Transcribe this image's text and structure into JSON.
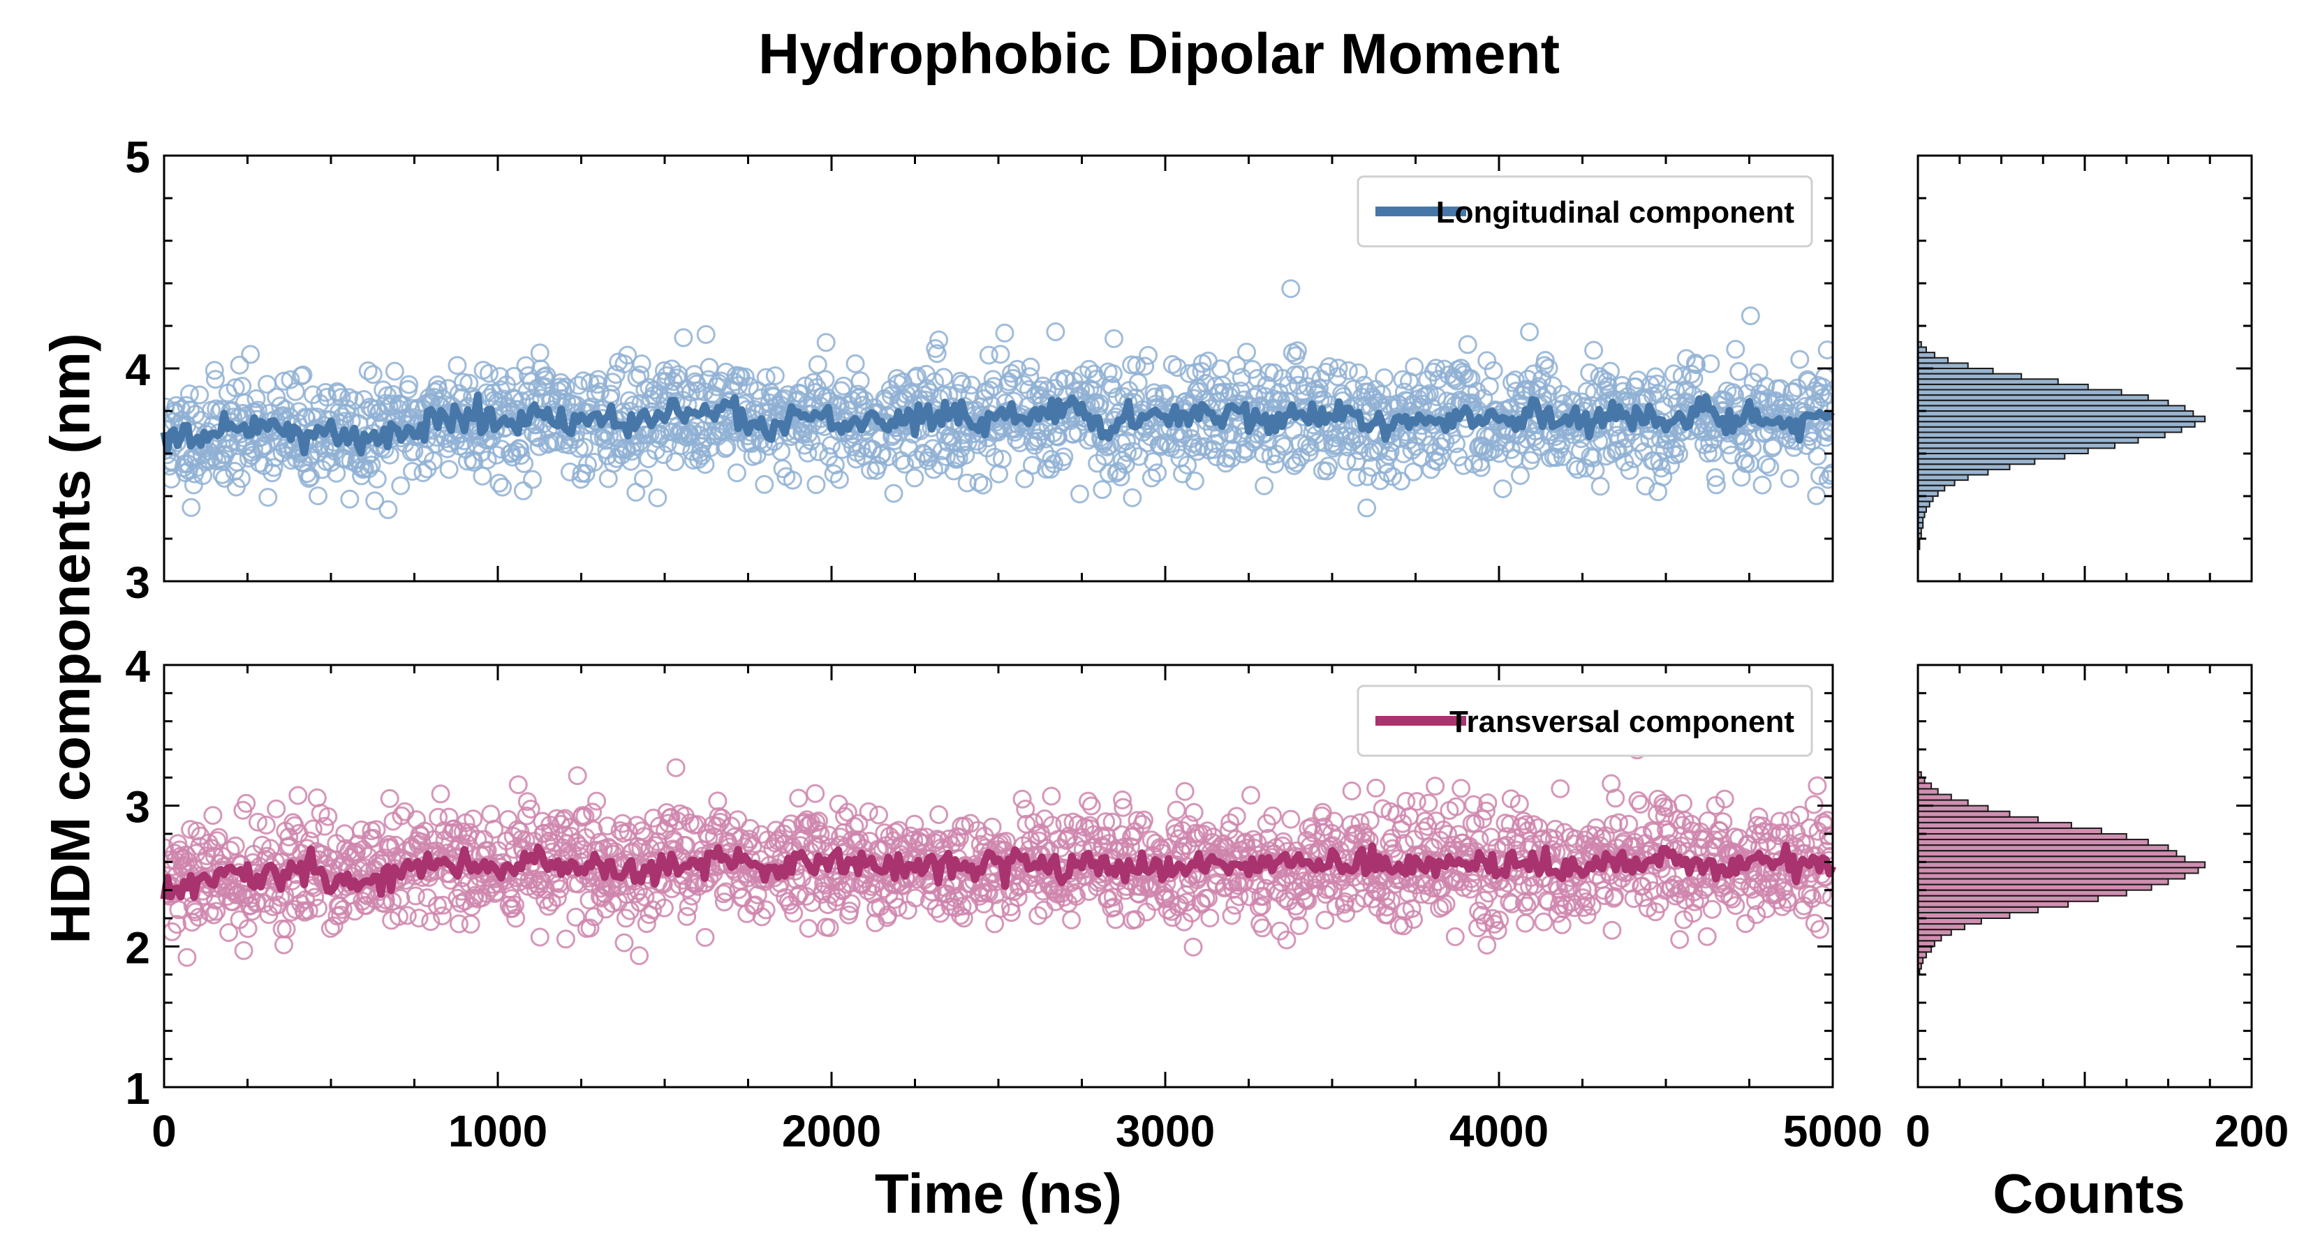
{
  "title": "Hydrophobic Dipolar Moment",
  "colors": {
    "longitudinal": "#4677a8",
    "longitudinal_scatter": "#8fb0d3",
    "transversal": "#a8336f",
    "transversal_scatter": "#cf85ad"
  },
  "chart_data": [
    {
      "type": "scatter",
      "panel": "top-time",
      "legend": "Longitudinal component",
      "legend_position": "top-right",
      "xlim": [
        0,
        5000
      ],
      "ylim": [
        3,
        5
      ],
      "yticks": [
        "3",
        "4",
        "5"
      ],
      "series": [
        {
          "name": "Longitudinal component (raw)",
          "style": "open-circles",
          "mean": 3.75,
          "spread": 0.13,
          "n_points": 2000
        },
        {
          "name": "Longitudinal component (running average)",
          "style": "line",
          "x": [
            0,
            100,
            200,
            300,
            400,
            500,
            600,
            700,
            800,
            900,
            1000,
            1100,
            1200,
            1300,
            1400,
            1500,
            1600,
            1700,
            1800,
            1900,
            2000,
            2100,
            2200,
            2300,
            2400,
            2500,
            2600,
            2700,
            2800,
            2900,
            3000,
            3100,
            3200,
            3300,
            3400,
            3500,
            3600,
            3700,
            3800,
            3900,
            4000,
            4100,
            4200,
            4300,
            4400,
            4500,
            4600,
            4700,
            4800,
            4900,
            5000
          ],
          "y": [
            3.65,
            3.68,
            3.7,
            3.72,
            3.68,
            3.7,
            3.66,
            3.72,
            3.75,
            3.78,
            3.76,
            3.78,
            3.74,
            3.79,
            3.72,
            3.8,
            3.77,
            3.82,
            3.72,
            3.78,
            3.78,
            3.72,
            3.76,
            3.78,
            3.74,
            3.76,
            3.78,
            3.82,
            3.72,
            3.76,
            3.78,
            3.76,
            3.8,
            3.76,
            3.78,
            3.78,
            3.74,
            3.74,
            3.76,
            3.78,
            3.76,
            3.78,
            3.76,
            3.76,
            3.78,
            3.74,
            3.8,
            3.76,
            3.76,
            3.74,
            3.76
          ]
        }
      ]
    },
    {
      "type": "scatter",
      "panel": "bottom-time",
      "legend": "Transversal component",
      "legend_position": "top-right",
      "xlabel": "Time (ns)",
      "xlim": [
        0,
        5000
      ],
      "xticks": [
        "0",
        "1000",
        "2000",
        "3000",
        "4000",
        "5000"
      ],
      "ylim": [
        1,
        4
      ],
      "yticks": [
        "1",
        "2",
        "3",
        "4"
      ],
      "series": [
        {
          "name": "Transversal component (raw)",
          "style": "open-circles",
          "mean": 2.57,
          "spread": 0.2,
          "n_points": 2000
        },
        {
          "name": "Transversal component (running average)",
          "style": "line",
          "x": [
            0,
            100,
            200,
            300,
            400,
            500,
            600,
            700,
            800,
            900,
            1000,
            1100,
            1200,
            1300,
            1400,
            1500,
            1600,
            1700,
            1800,
            1900,
            2000,
            2100,
            2200,
            2300,
            2400,
            2500,
            2600,
            2700,
            2800,
            2900,
            3000,
            3100,
            3200,
            3300,
            3400,
            3500,
            3600,
            3700,
            3800,
            3900,
            4000,
            4100,
            4200,
            4300,
            4400,
            4500,
            4600,
            4700,
            4800,
            4900,
            5000
          ],
          "y": [
            2.42,
            2.45,
            2.52,
            2.45,
            2.58,
            2.5,
            2.45,
            2.55,
            2.58,
            2.6,
            2.52,
            2.62,
            2.55,
            2.6,
            2.52,
            2.58,
            2.6,
            2.62,
            2.55,
            2.6,
            2.58,
            2.62,
            2.55,
            2.58,
            2.55,
            2.58,
            2.62,
            2.55,
            2.58,
            2.55,
            2.58,
            2.6,
            2.55,
            2.58,
            2.6,
            2.58,
            2.6,
            2.55,
            2.58,
            2.6,
            2.55,
            2.58,
            2.55,
            2.6,
            2.58,
            2.62,
            2.55,
            2.58,
            2.6,
            2.55,
            2.58
          ]
        }
      ]
    },
    {
      "type": "bar",
      "panel": "top-hist",
      "orientation": "horizontal",
      "ylim": [
        3,
        5
      ],
      "xlim": [
        0,
        200
      ],
      "bin_width": 0.025,
      "bins_start": [
        3.15,
        3.175,
        3.2,
        3.225,
        3.25,
        3.275,
        3.3,
        3.325,
        3.35,
        3.375,
        3.4,
        3.425,
        3.45,
        3.475,
        3.5,
        3.525,
        3.55,
        3.575,
        3.6,
        3.625,
        3.65,
        3.675,
        3.7,
        3.725,
        3.75,
        3.775,
        3.8,
        3.825,
        3.85,
        3.875,
        3.9,
        3.925,
        3.95,
        3.975,
        4.0,
        4.025,
        4.05,
        4.075,
        4.1
      ],
      "counts": [
        1,
        1,
        2,
        2,
        3,
        3,
        4,
        5,
        7,
        9,
        12,
        16,
        22,
        30,
        42,
        55,
        70,
        88,
        102,
        118,
        132,
        148,
        158,
        166,
        172,
        165,
        160,
        150,
        138,
        122,
        102,
        84,
        62,
        45,
        30,
        18,
        10,
        5,
        2
      ]
    },
    {
      "type": "bar",
      "panel": "bottom-hist",
      "orientation": "horizontal",
      "xlabel": "Counts",
      "ylim": [
        1,
        4
      ],
      "xlim": [
        0,
        200
      ],
      "xticks": [
        "0",
        "200"
      ],
      "bin_width": 0.04,
      "bins_start": [
        1.8,
        1.84,
        1.88,
        1.92,
        1.96,
        2.0,
        2.04,
        2.08,
        2.12,
        2.16,
        2.2,
        2.24,
        2.28,
        2.32,
        2.36,
        2.4,
        2.44,
        2.48,
        2.52,
        2.56,
        2.6,
        2.64,
        2.68,
        2.72,
        2.76,
        2.8,
        2.84,
        2.88,
        2.92,
        2.96,
        3.0,
        3.04,
        3.08,
        3.12,
        3.16,
        3.2
      ],
      "counts": [
        1,
        2,
        3,
        5,
        8,
        10,
        14,
        20,
        28,
        38,
        55,
        72,
        90,
        108,
        125,
        140,
        150,
        160,
        168,
        172,
        160,
        155,
        150,
        138,
        125,
        110,
        92,
        72,
        55,
        42,
        30,
        20,
        12,
        8,
        4,
        2
      ]
    }
  ],
  "shared_ylabel": "HDM components (nm)"
}
